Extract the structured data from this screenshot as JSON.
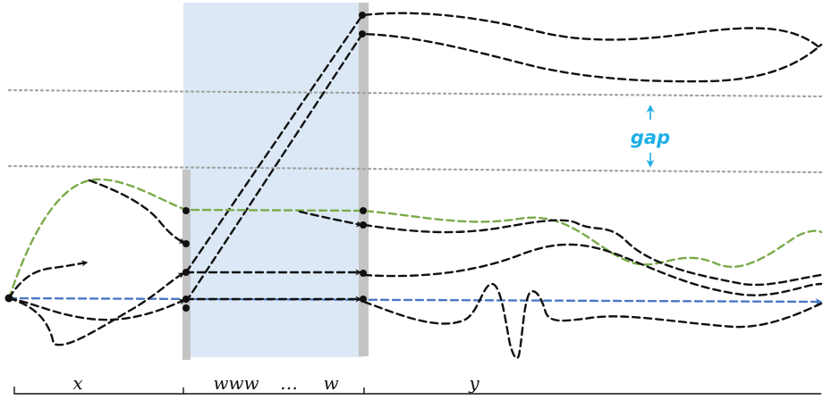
{
  "labels": {
    "x": "x",
    "www": "www",
    "ellipsis": "…",
    "w": "w",
    "y": "y",
    "gap": "gap"
  },
  "colors": {
    "window_fill": "#dce8f5",
    "bar": "#c4c4c4",
    "gap": "#1eaee6",
    "green_path": "#7aab4a",
    "blue_path": "#4a78c6",
    "black_path": "#111111",
    "dotted": "#a3a3a3"
  }
}
